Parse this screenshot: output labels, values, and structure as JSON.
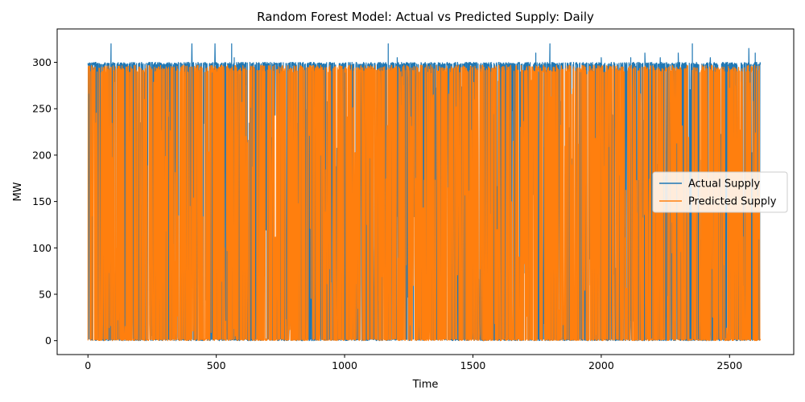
{
  "chart_data": {
    "type": "line",
    "title": "Random Forest Model: Actual vs Predicted Supply: Daily",
    "xlabel": "Time",
    "ylabel": "MW",
    "xlim": [
      -120,
      2750
    ],
    "ylim": [
      -15,
      336
    ],
    "xticks": [
      0,
      500,
      1000,
      1500,
      2000,
      2500
    ],
    "yticks": [
      0,
      50,
      100,
      150,
      200,
      250,
      300
    ],
    "grid": false,
    "legend": "center-right",
    "x_range": [
      0,
      2620
    ],
    "series": [
      {
        "name": "Actual Supply",
        "color": "#1f77b4",
        "typical_high": 300,
        "typical_low": 0,
        "peaks": [
          [
            90,
            320
          ],
          [
            405,
            320
          ],
          [
            495,
            320
          ],
          [
            560,
            320
          ],
          [
            1170,
            320
          ],
          [
            1800,
            320
          ],
          [
            2355,
            320
          ],
          [
            2575,
            315
          ],
          [
            1745,
            310
          ],
          [
            2170,
            310
          ],
          [
            2300,
            310
          ],
          [
            2600,
            310
          ],
          [
            570,
            305
          ],
          [
            1205,
            305
          ],
          [
            2000,
            305
          ],
          [
            2115,
            305
          ],
          [
            2230,
            305
          ],
          [
            2425,
            305
          ]
        ]
      },
      {
        "name": "Predicted Supply",
        "color": "#ff7f0e",
        "typical_high": 297,
        "typical_low": 0
      }
    ]
  }
}
